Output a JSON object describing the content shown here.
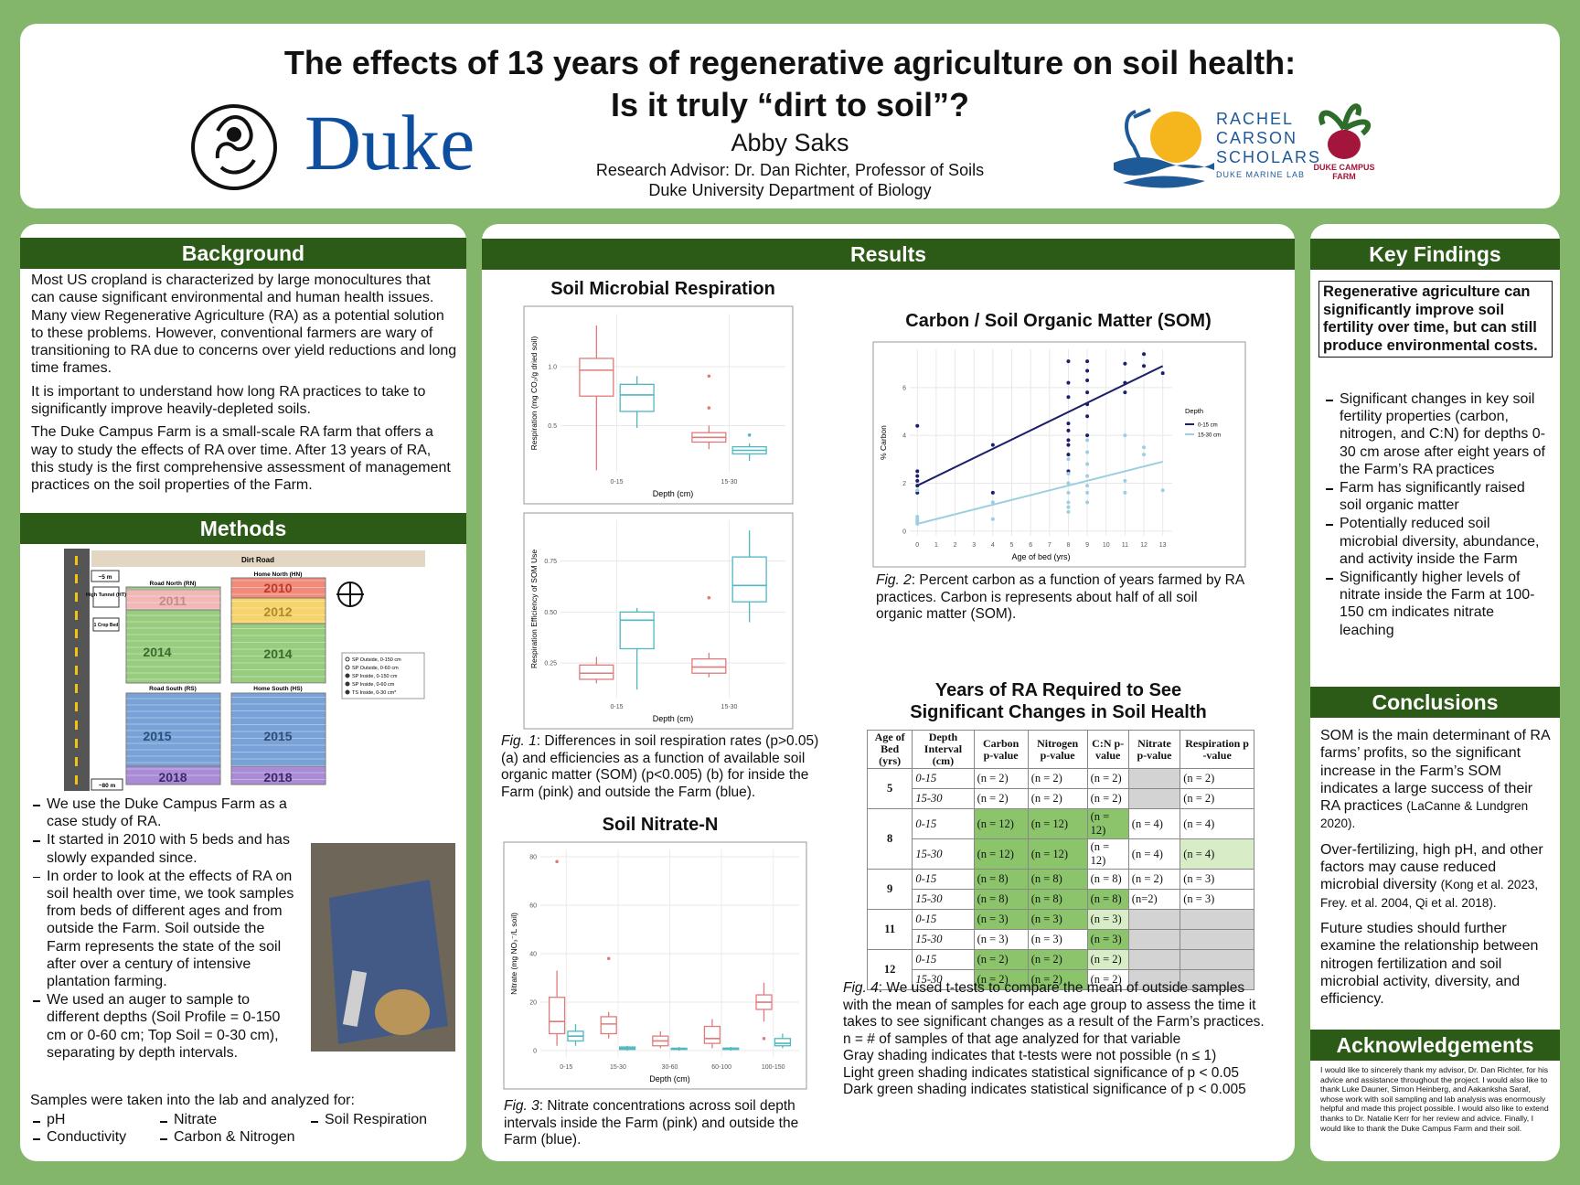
{
  "header": {
    "title": [
      "The effects of 13 years of regenerative agriculture on soil health:",
      "Is it truly “dirt to soil”?"
    ],
    "author": "Abby Saks",
    "advisor": "Research Advisor: Dr. Dan Richter, Professor of Soils",
    "department": "Duke University Department of Biology",
    "logos": {
      "duke": "Duke",
      "rcs": [
        "RACHEL",
        "CARSON",
        "SCHOLARS",
        "DUKE MARINE LAB"
      ],
      "farm": [
        "DUKE CAMPUS",
        "FARM"
      ]
    }
  },
  "background": {
    "heading": "Background",
    "paragraphs": [
      "Most US cropland is characterized by large monocultures that can cause significant environmental and human health issues. Many view Regenerative Agriculture (RA) as a potential solution to these problems. However, conventional farmers are wary of transitioning to RA due to concerns over yield reductions and long time frames.",
      "It is important to understand how long RA practices to take to significantly improve heavily-depleted soils.",
      "The Duke Campus Farm is a small-scale RA farm that offers a way to study the effects of RA over time. After 13 years of RA, this study is the first comprehensive assessment of management practices on the soil properties of the Farm."
    ]
  },
  "methods": {
    "heading": "Methods",
    "map": {
      "road": "Dirt Road",
      "scale_top": "~5 m",
      "scale_bottom": "~80 m",
      "blocks": [
        "Road North (RN)",
        "Home North (HN)",
        "Road South (RS)",
        "Home South (HS)"
      ],
      "buildings": [
        "High Tunnel (HT)",
        "1 Crop Bed"
      ],
      "years": [
        "2010",
        "2011",
        "2012",
        "2014",
        "2014",
        "2015",
        "2015",
        "2018",
        "2018"
      ],
      "legend": [
        "SP Outside, 0-150 cm",
        "SP Outside, 0-60 cm",
        "SP Inside, 0-150 cm",
        "SP Inside, 0-60 cm",
        "TS Inside, 0-30 cm*"
      ]
    },
    "bullets": [
      "We use the Duke Campus Farm as a case study of RA.",
      "It started in 2010 with 5 beds and has slowly expanded since.",
      "In order to look at the effects of RA on soil health over time, we took samples from beds of different ages and from outside the Farm. Soil outside the Farm represents the state of the soil after over a century of intensive plantation farming.",
      "We used an auger to sample to different depths (Soil Profile = 0-150 cm or 0-60 cm; Top Soil = 0-30 cm), separating by depth intervals."
    ],
    "samples_intro": "Samples were taken into the lab and analyzed for:",
    "analyses": [
      "pH",
      "Nitrate",
      "Soil Respiration",
      "Conductivity",
      "Carbon & Nitrogen"
    ]
  },
  "results": {
    "heading": "Results",
    "fig1": {
      "label": "Fig. 1",
      "text": ": Differences in soil respiration rates (p>0.05) (a) and efficiencies as a function of available soil organic matter (SOM) (p<0.005) (b) for inside the Farm (pink) and outside the Farm (blue)."
    },
    "fig2": {
      "label": "Fig. 2",
      "text": ": Percent carbon as a function of years farmed by RA practices. Carbon is represents about half of all soil organic matter (SOM)."
    },
    "fig3": {
      "label": "Fig. 3",
      "text": ": Nitrate concentrations across soil depth intervals inside the Farm (pink) and outside the Farm (blue)."
    },
    "fig4": {
      "label": "Fig. 4",
      "text": ": We used t-tests to compare the mean of outside samples with the mean of samples for each age group to assess the time it takes to see significant changes as a result of the Farm’s practices.",
      "notes": [
        "n = # of samples of that age analyzed for that variable",
        "Gray shading indicates that t-tests were not possible (n ≤ 1)",
        "Light green shading indicates statistical significance of p < 0.05",
        "Dark green shading indicates statistical significance of p < 0.005"
      ]
    },
    "table_title": [
      "Years of RA Required to See",
      "Significant Changes in Soil Health"
    ],
    "table": {
      "header": [
        "Age of Bed (yrs)",
        "Depth Interval (cm)",
        "Carbon p-value",
        "Nitrogen p-value",
        "C:N p-value",
        "Nitrate p-value",
        "Respiration p -value"
      ],
      "rows": [
        {
          "age": "5",
          "depths": [
            {
              "depth": "0-15",
              "cells": [
                "(n = 2)",
                "(n = 2)",
                "(n = 2)",
                null,
                "(n = 2)"
              ],
              "shade": [
                "none",
                "none",
                "none",
                "gray",
                "none"
              ]
            },
            {
              "depth": "15-30",
              "cells": [
                "(n = 2)",
                "(n = 2)",
                "(n = 2)",
                null,
                "(n = 2)"
              ],
              "shade": [
                "none",
                "none",
                "none",
                "gray",
                "none"
              ]
            }
          ]
        },
        {
          "age": "8",
          "depths": [
            {
              "depth": "0-15",
              "cells": [
                "(n = 12)",
                "(n = 12)",
                "(n = 12)",
                "(n = 4)",
                "(n = 4)"
              ],
              "shade": [
                "dark",
                "dark",
                "dark",
                "none",
                "none"
              ]
            },
            {
              "depth": "15-30",
              "cells": [
                "(n = 12)",
                "(n = 12)",
                "(n = 12)",
                "(n = 4)",
                "(n = 4)"
              ],
              "shade": [
                "dark",
                "dark",
                "none",
                "none",
                "light"
              ]
            }
          ]
        },
        {
          "age": "9",
          "depths": [
            {
              "depth": "0-15",
              "cells": [
                "(n = 8)",
                "(n = 8)",
                "(n = 8)",
                "(n = 2)",
                "(n = 3)"
              ],
              "shade": [
                "dark",
                "dark",
                "none",
                "none",
                "none"
              ]
            },
            {
              "depth": "15-30",
              "cells": [
                "(n = 8)",
                "(n = 8)",
                "(n = 8)",
                "(n=2)",
                "(n = 3)"
              ],
              "shade": [
                "dark",
                "dark",
                "dark",
                "none",
                "none"
              ]
            }
          ]
        },
        {
          "age": "11",
          "depths": [
            {
              "depth": "0-15",
              "cells": [
                "(n = 3)",
                "(n = 3)",
                "(n = 3)",
                null,
                null
              ],
              "shade": [
                "dark",
                "dark",
                "light",
                "gray",
                "gray"
              ]
            },
            {
              "depth": "15-30",
              "cells": [
                "(n = 3)",
                "(n = 3)",
                "(n = 3)",
                null,
                null
              ],
              "shade": [
                "none",
                "none",
                "dark",
                "gray",
                "gray"
              ]
            }
          ]
        },
        {
          "age": "12",
          "depths": [
            {
              "depth": "0-15",
              "cells": [
                "(n = 2)",
                "(n = 2)",
                "(n = 2)",
                null,
                null
              ],
              "shade": [
                "dark",
                "dark",
                "light",
                "gray",
                "gray"
              ]
            },
            {
              "depth": "15-30",
              "cells": [
                "(n = 2)",
                "(n = 2)",
                "(n = 2)",
                null,
                null
              ],
              "shade": [
                "dark",
                "dark",
                "none",
                "gray",
                "gray"
              ]
            }
          ]
        }
      ]
    }
  },
  "chart_data": [
    {
      "type": "box",
      "title": "Soil Microbial Respiration",
      "x_label": "Depth (cm)",
      "y_label": "Respiration (mg CO₂/g dried soil)",
      "categories": [
        "0-15",
        "15-30"
      ],
      "ylim": [
        0.1,
        1.45
      ],
      "yticks": [
        0.5,
        {
          "value": 1,
          "label": "1.0"
        }
      ],
      "grid": true,
      "series": [
        {
          "color": "#e07b7b",
          "values": [
            {
              "low": 0.12,
              "q1": 0.75,
              "median": 0.97,
              "q3": 1.07,
              "high": 1.35,
              "outliers": []
            },
            {
              "low": 0.3,
              "q1": 0.36,
              "median": 0.4,
              "q3": 0.44,
              "high": 0.5,
              "outliers": [
                0.92,
                0.65
              ]
            }
          ]
        },
        {
          "color": "#4fb8c0",
          "values": [
            {
              "low": 0.48,
              "q1": 0.62,
              "median": 0.76,
              "q3": 0.85,
              "high": 0.92,
              "outliers": []
            },
            {
              "low": 0.2,
              "q1": 0.26,
              "median": 0.29,
              "q3": 0.32,
              "high": 0.35,
              "outliers": [
                0.42
              ]
            }
          ]
        }
      ]
    },
    {
      "type": "box",
      "x_label": "Depth (cm)",
      "y_label": "Respiration Efficiency of SOM Use",
      "categories": [
        "0-15",
        "15-30"
      ],
      "ylim": [
        0.08,
        0.95
      ],
      "yticks": [
        0.25,
        {
          "value": 0.5,
          "label": "0.50"
        },
        0.75
      ],
      "grid": true,
      "series": [
        {
          "color": "#e07b7b",
          "values": [
            {
              "low": 0.15,
              "q1": 0.17,
              "median": 0.2,
              "q3": 0.24,
              "high": 0.28,
              "outliers": []
            },
            {
              "low": 0.18,
              "q1": 0.2,
              "median": 0.23,
              "q3": 0.27,
              "high": 0.3,
              "outliers": [
                0.57
              ]
            }
          ]
        },
        {
          "color": "#4fb8c0",
          "values": [
            {
              "low": 0.12,
              "q1": 0.32,
              "median": 0.46,
              "q3": 0.5,
              "high": 0.52,
              "outliers": []
            },
            {
              "low": 0.45,
              "q1": 0.55,
              "median": 0.63,
              "q3": 0.77,
              "high": 0.9,
              "outliers": []
            }
          ]
        }
      ]
    },
    {
      "type": "box",
      "title": "Soil Nitrate-N",
      "x_label": "Depth (cm)",
      "y_label": "Nitrate (mg NO₃⁻/L soil)",
      "categories": [
        "0-15",
        "15-30",
        "30-60",
        "60-100",
        "100-150"
      ],
      "ylim": [
        -3,
        83
      ],
      "yticks": [
        0,
        20,
        40,
        60,
        80
      ],
      "grid": true,
      "series": [
        {
          "color": "#e07b7b",
          "values": [
            {
              "low": 2,
              "q1": 7,
              "median": 12,
              "q3": 22,
              "high": 33,
              "outliers": [
                78
              ]
            },
            {
              "low": 5,
              "q1": 7,
              "median": 11,
              "q3": 14,
              "high": 16,
              "outliers": [
                38
              ]
            },
            {
              "low": 1,
              "q1": 2,
              "median": 4,
              "q3": 6,
              "high": 8,
              "outliers": []
            },
            {
              "low": 1,
              "q1": 3,
              "median": 5,
              "q3": 10,
              "high": 13,
              "outliers": []
            },
            {
              "low": 12,
              "q1": 17,
              "median": 20,
              "q3": 23,
              "high": 28,
              "outliers": [
                5
              ]
            }
          ]
        },
        {
          "color": "#4fb8c0",
          "values": [
            {
              "low": 2,
              "q1": 4,
              "median": 6,
              "q3": 8,
              "high": 11,
              "outliers": []
            },
            {
              "low": 0,
              "q1": 0.5,
              "median": 1,
              "q3": 1.5,
              "high": 2,
              "outliers": []
            },
            {
              "low": 0,
              "q1": 0.5,
              "median": 0.8,
              "q3": 1,
              "high": 1.5,
              "outliers": []
            },
            {
              "low": 0,
              "q1": 0.5,
              "median": 1,
              "q3": 1,
              "high": 1.5,
              "outliers": []
            },
            {
              "low": 1,
              "q1": 2,
              "median": 3,
              "q3": 5,
              "high": 7,
              "outliers": []
            }
          ]
        }
      ]
    },
    {
      "type": "scatter",
      "title": "Carbon / Soil Organic Matter (SOM)",
      "x_label": "Age of bed (yrs)",
      "y_label": "% Carbon",
      "legend_title": "Depth",
      "legend": "right",
      "xlim": [
        -0.4,
        13.5
      ],
      "ylim": [
        -0.2,
        7.6
      ],
      "xticks": [
        0,
        1,
        2,
        3,
        4,
        5,
        6,
        7,
        8,
        9,
        10,
        11,
        12,
        13
      ],
      "yticks": [
        0,
        2,
        4,
        6
      ],
      "grid": true,
      "series": [
        {
          "name": "0-15 cm",
          "color": "#1a1f6b",
          "x": [
            0,
            0,
            0,
            0,
            0,
            0,
            4,
            4,
            8,
            8,
            8,
            8,
            8,
            8,
            8,
            8,
            8,
            9,
            9,
            9,
            9,
            9,
            9,
            9,
            11,
            11,
            11,
            12,
            12,
            13
          ],
          "values": [
            1.6,
            1.9,
            2.1,
            2.3,
            2.5,
            4.4,
            3.6,
            1.6,
            2.5,
            3.2,
            3.6,
            3.8,
            4.2,
            4.5,
            5.6,
            6.2,
            7.1,
            4.0,
            4.8,
            5.3,
            5.8,
            6.3,
            6.7,
            7.1,
            5.8,
            6.2,
            7.0,
            6.9,
            7.4,
            6.6
          ],
          "trend": {
            "x": [
              0,
              13
            ],
            "values": [
              1.9,
              6.9
            ]
          }
        },
        {
          "name": "15-30 cm",
          "color": "#9ccfe0",
          "x": [
            0,
            0,
            0,
            0,
            0,
            4,
            4,
            8,
            8,
            8,
            8,
            8,
            8,
            8,
            9,
            9,
            9,
            9,
            9,
            9,
            9,
            11,
            11,
            11,
            12,
            12,
            13
          ],
          "values": [
            0.3,
            0.4,
            0.5,
            0.6,
            1.7,
            0.5,
            1.2,
            0.8,
            1.0,
            1.2,
            1.6,
            2.0,
            2.4,
            3.0,
            1.2,
            1.6,
            1.9,
            2.3,
            2.8,
            3.3,
            3.8,
            1.6,
            2.1,
            4.0,
            3.5,
            3.2,
            1.7
          ],
          "trend": {
            "x": [
              0,
              13
            ],
            "values": [
              0.3,
              2.9
            ]
          }
        }
      ]
    }
  ],
  "key_findings": {
    "heading": "Key Findings",
    "summary": "Regenerative agriculture can significantly improve soil fertility over time, but can still produce environmental costs.",
    "bullets": [
      "Significant changes in key soil fertility properties (carbon, nitrogen, and C:N) for depths 0-30 cm arose after eight years of the Farm’s RA practices",
      "Farm has significantly raised soil organic matter",
      "Potentially reduced soil microbial diversity, abundance, and activity inside the Farm",
      "Significantly higher levels of nitrate inside the Farm at 100-150 cm indicates nitrate leaching"
    ]
  },
  "conclusions": {
    "heading": "Conclusions",
    "paragraphs": [
      {
        "text": "SOM is the main determinant of RA farms’ profits, so the significant increase in the Farm’s SOM indicates a large success of their RA practices ",
        "ref": "(LaCanne & Lundgren 2020)."
      },
      {
        "text": "Over-fertilizing, high pH, and other factors may cause reduced microbial diversity ",
        "ref": "(Kong et al. 2023, Frey. et al. 2004, Qi et al. 2018)."
      },
      {
        "text": "Future studies should further examine the relationship between nitrogen fertilization and soil microbial activity, diversity, and efficiency."
      }
    ]
  },
  "acknowledgements": {
    "heading": "Acknowledgements",
    "text": "I would like to sincerely thank my advisor, Dr. Dan Richter, for his advice and assistance throughout the project. I would also like to thank Luke Dauner, Simon Heinberg, and Aakanksha Saraf, whose work with soil sampling and lab analysis was enormously helpful and made this project possible. I would also like to extend thanks to Dr. Natalie Kerr for her review and advice. Finally, I would like to thank the Duke Campus Farm and their soil."
  }
}
